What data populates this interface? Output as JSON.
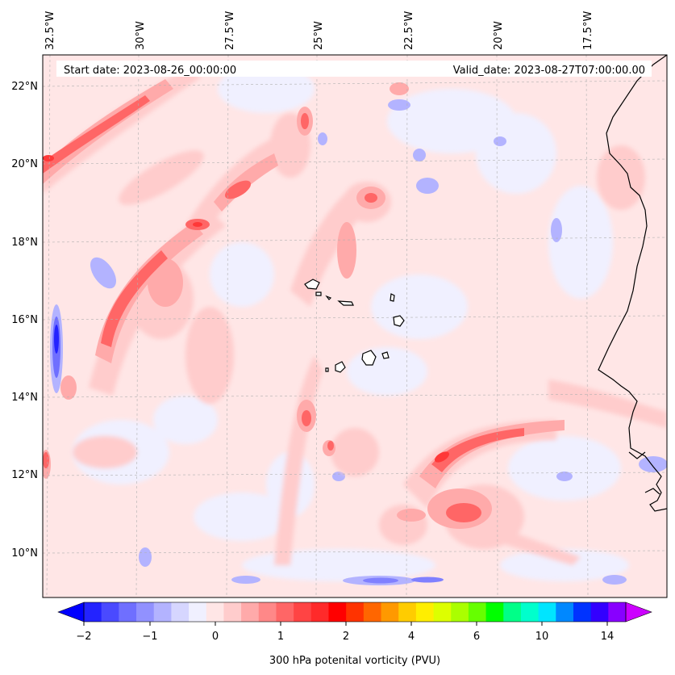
{
  "header": {
    "start_date": "Start date: 2023-08-26_00:00:00",
    "valid_date": "Valid_date: 2023-08-27T07:00:00.00"
  },
  "map": {
    "longitude_labels": [
      "32.5°W",
      "30°W",
      "27.5°W",
      "25°W",
      "22.5°W",
      "20°W",
      "17.5°W"
    ],
    "latitude_labels": [
      "22°N",
      "20°N",
      "18°N",
      "16°N",
      "14°N",
      "12°N",
      "10°N"
    ],
    "gridlines": true,
    "colors": {
      "coastline": "#000000",
      "background_field": "#ffe6e6"
    }
  },
  "colorbar": {
    "label": "300 hPa potenital vorticity (PVU)",
    "ticks": [
      "−2",
      "−1",
      "0",
      "1",
      "2",
      "4",
      "6",
      "10",
      "14"
    ],
    "colors": [
      "#0000ff",
      "#2323ff",
      "#4a4aff",
      "#6f6fff",
      "#9191ff",
      "#b3b3ff",
      "#d6d6ff",
      "#f0f0ff",
      "#ffe6e6",
      "#ffcccc",
      "#ffaaaa",
      "#ff8888",
      "#ff6666",
      "#ff4444",
      "#ff2a2a",
      "#ff0000",
      "#ff3300",
      "#ff6600",
      "#ff9900",
      "#ffcc00",
      "#ffee00",
      "#ddff00",
      "#aaff00",
      "#66ff00",
      "#00ff00",
      "#00ff88",
      "#00ffcc",
      "#00e5ff",
      "#0088ff",
      "#0033ff",
      "#3300ff",
      "#8800ff",
      "#cc00ff"
    ]
  }
}
